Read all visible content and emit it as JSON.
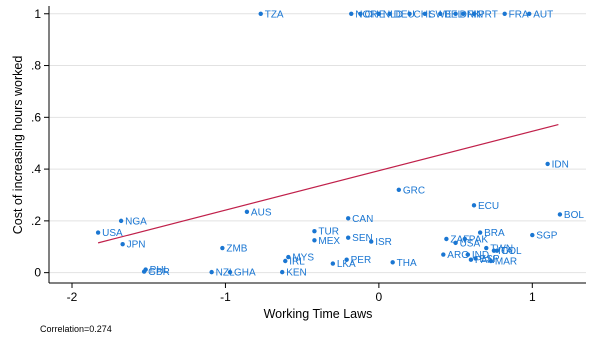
{
  "colors": {
    "points": "#1a76d2",
    "fit_line": "#c0204a",
    "grid": "#e2e2e2",
    "axis": "#000000"
  },
  "chart_data": {
    "type": "scatter",
    "title": "",
    "xlabel": "Working Time Laws",
    "ylabel": "Cost of increasing hours worked",
    "xlim": [
      -2.15,
      1.35
    ],
    "ylim": [
      -0.04,
      1.03
    ],
    "xticks": [
      -2,
      -1,
      0,
      1
    ],
    "xtick_labels": [
      "-2",
      "-1",
      "0",
      "1"
    ],
    "yticks": [
      0,
      0.2,
      0.4,
      0.6,
      0.8,
      1
    ],
    "ytick_labels": [
      "0",
      ".2",
      ".4",
      ".6",
      ".8",
      "1"
    ],
    "grid": true,
    "fit_line": {
      "x": [
        -1.83,
        1.17
      ],
      "y": [
        0.115,
        0.572
      ]
    },
    "note": "Correlation=0.274",
    "points": [
      {
        "label": "TZA",
        "x": -0.77,
        "y": 1.0
      },
      {
        "label": "NOR",
        "x": -0.18,
        "y": 1.0
      },
      {
        "label": "CHE",
        "x": -0.12,
        "y": 1.0
      },
      {
        "label": "NLD",
        "x": 0.0,
        "y": 1.0
      },
      {
        "label": "DEU",
        "x": 0.07,
        "y": 1.0
      },
      {
        "label": "CHL",
        "x": 0.2,
        "y": 1.0
      },
      {
        "label": "SWE",
        "x": 0.3,
        "y": 1.0
      },
      {
        "label": "BEL",
        "x": 0.4,
        "y": 1.0
      },
      {
        "label": "DNK",
        "x": 0.5,
        "y": 1.0
      },
      {
        "label": "FIN",
        "x": 0.55,
        "y": 1.0
      },
      {
        "label": "PRT",
        "x": 0.62,
        "y": 1.0
      },
      {
        "label": "FRA",
        "x": 0.82,
        "y": 1.0
      },
      {
        "label": "AUT",
        "x": 0.98,
        "y": 1.0
      },
      {
        "label": "IDN",
        "x": 1.1,
        "y": 0.42
      },
      {
        "label": "BOL",
        "x": 1.18,
        "y": 0.225
      },
      {
        "label": "SGP",
        "x": 1.0,
        "y": 0.145
      },
      {
        "label": "GRC",
        "x": 0.13,
        "y": 0.32
      },
      {
        "label": "ECU",
        "x": 0.62,
        "y": 0.26
      },
      {
        "label": "BRA",
        "x": 0.66,
        "y": 0.155
      },
      {
        "label": "ZAF",
        "x": 0.44,
        "y": 0.13
      },
      {
        "label": "PAK",
        "x": 0.56,
        "y": 0.13
      },
      {
        "label": "USA",
        "x": 0.5,
        "y": 0.115
      },
      {
        "label": "TWN",
        "x": 0.7,
        "y": 0.095
      },
      {
        "label": "ITA",
        "x": 0.75,
        "y": 0.085
      },
      {
        "label": "COL",
        "x": 0.77,
        "y": 0.085
      },
      {
        "label": "ARG",
        "x": 0.42,
        "y": 0.07
      },
      {
        "label": "IND",
        "x": 0.58,
        "y": 0.07
      },
      {
        "label": "PAN",
        "x": 0.6,
        "y": 0.05
      },
      {
        "label": "ESP",
        "x": 0.63,
        "y": 0.055
      },
      {
        "label": "MAR",
        "x": 0.73,
        "y": 0.045
      },
      {
        "label": "NGA",
        "x": -1.68,
        "y": 0.2
      },
      {
        "label": "USA",
        "x": -1.83,
        "y": 0.155
      },
      {
        "label": "JPN",
        "x": -1.67,
        "y": 0.11
      },
      {
        "label": "AUS",
        "x": -0.86,
        "y": 0.235
      },
      {
        "label": "CAN",
        "x": -0.2,
        "y": 0.21
      },
      {
        "label": "TUR",
        "x": -0.42,
        "y": 0.16
      },
      {
        "label": "MEX",
        "x": -0.42,
        "y": 0.125
      },
      {
        "label": "SEN",
        "x": -0.2,
        "y": 0.135
      },
      {
        "label": "ISR",
        "x": -0.05,
        "y": 0.12
      },
      {
        "label": "ZMB",
        "x": -1.02,
        "y": 0.095
      },
      {
        "label": "MYS",
        "x": -0.59,
        "y": 0.06
      },
      {
        "label": "IRL",
        "x": -0.61,
        "y": 0.045
      },
      {
        "label": "PER",
        "x": -0.21,
        "y": 0.05
      },
      {
        "label": "THA",
        "x": 0.09,
        "y": 0.04
      },
      {
        "label": "LKA",
        "x": -0.3,
        "y": 0.035
      },
      {
        "label": "PHL",
        "x": -1.52,
        "y": 0.012
      },
      {
        "label": "GBR",
        "x": -1.53,
        "y": 0.004
      },
      {
        "label": "NZL",
        "x": -1.09,
        "y": 0.002
      },
      {
        "label": "GHA",
        "x": -0.97,
        "y": 0.002
      },
      {
        "label": "KEN",
        "x": -0.63,
        "y": 0.002
      }
    ]
  }
}
